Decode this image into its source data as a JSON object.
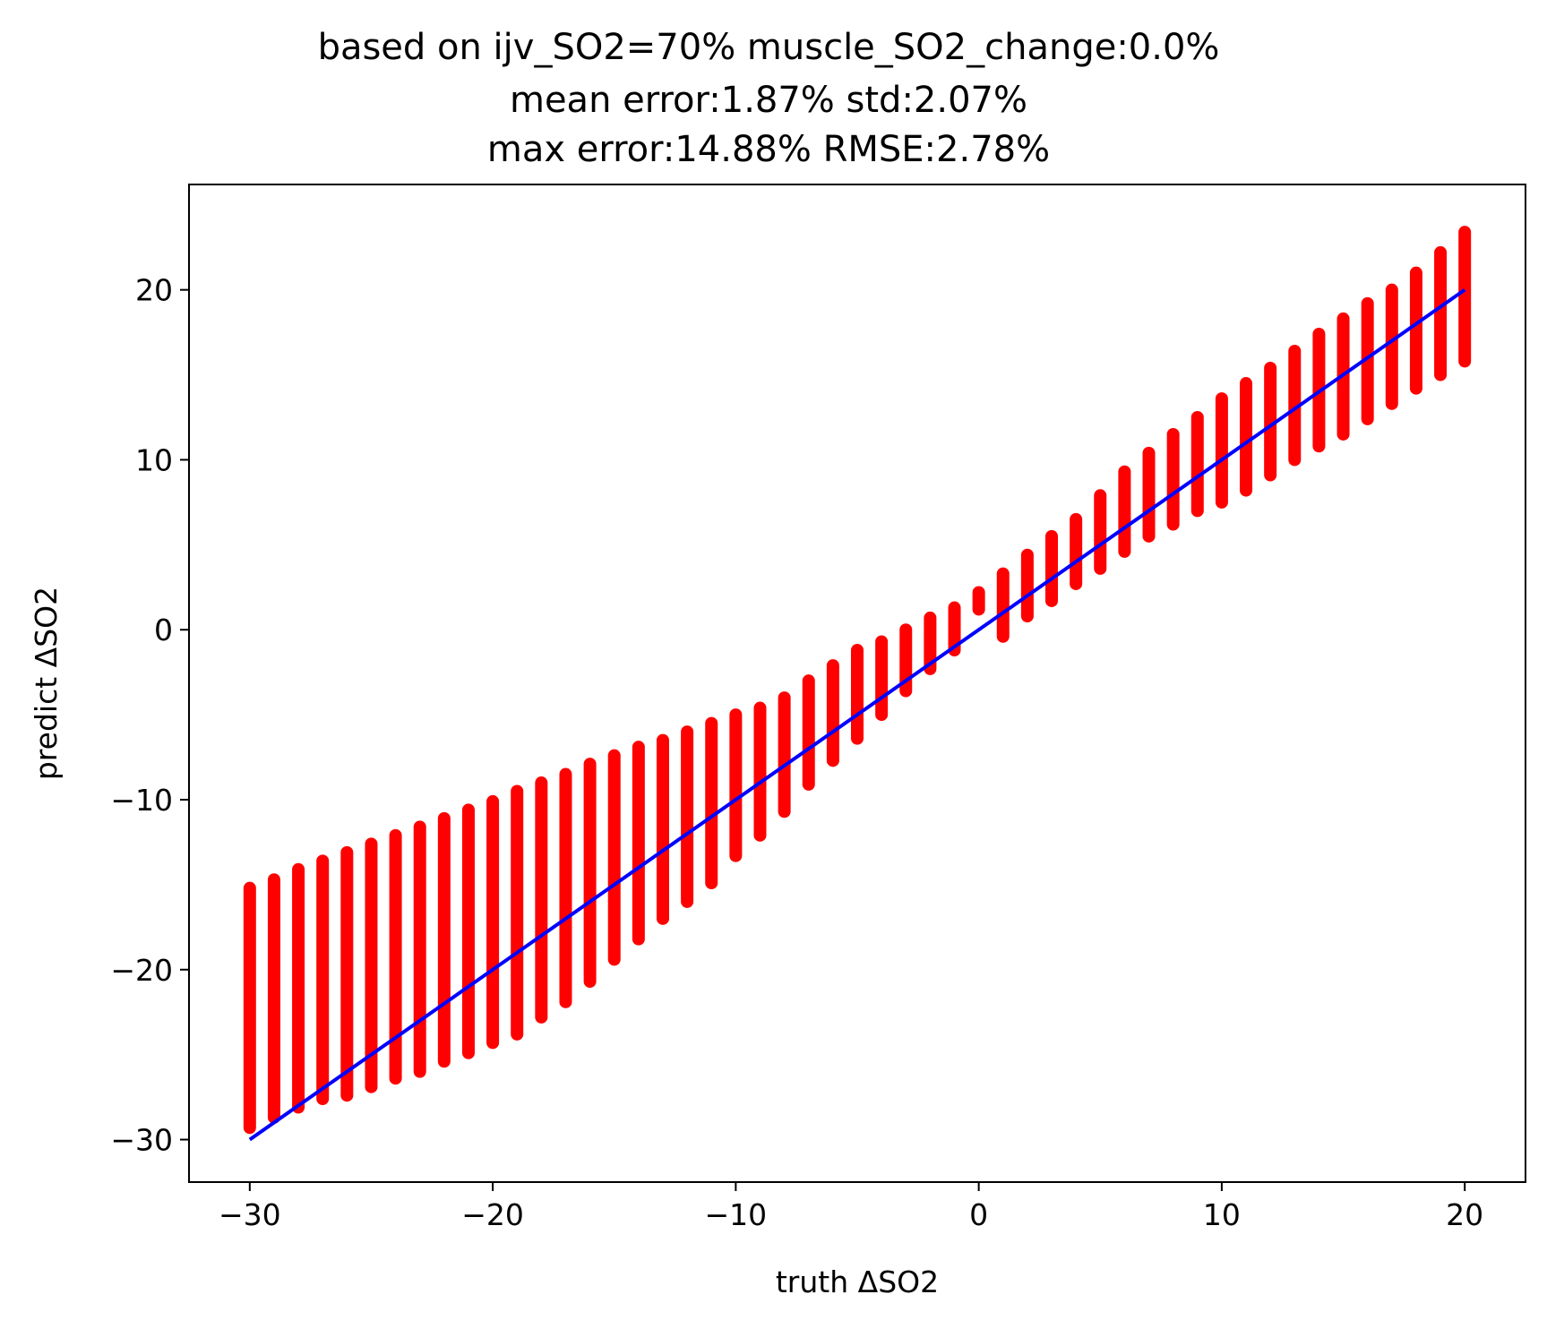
{
  "chart_data": {
    "type": "scatter",
    "title_lines": [
      "based on ijv_SO2=70% muscle_SO2_change:0.0%",
      "mean error:1.87% std:2.07%",
      "max error:14.88% RMSE:2.78%"
    ],
    "xlabel": "truth ΔSO2",
    "ylabel": "predict ΔSO2",
    "xlim": [
      -32.5,
      22.5
    ],
    "ylim": [
      -32.5,
      26.2
    ],
    "xticks": [
      -30,
      -20,
      -10,
      0,
      10,
      20
    ],
    "yticks": [
      -30,
      -20,
      -10,
      0,
      10,
      20
    ],
    "xtick_labels": [
      "−30",
      "−20",
      "−10",
      "0",
      "10",
      "20"
    ],
    "ytick_labels": [
      "−30",
      "−20",
      "−10",
      "0",
      "10",
      "20"
    ],
    "grid": false,
    "legend": "none",
    "series": [
      {
        "kind": "prediction-ranges",
        "color": "#ff0000",
        "x": [
          -30,
          -29,
          -28,
          -27,
          -26,
          -25,
          -24,
          -23,
          -22,
          -21,
          -20,
          -19,
          -18,
          -17,
          -16,
          -15,
          -14,
          -13,
          -12,
          -11,
          -10,
          -9,
          -8,
          -7,
          -6,
          -5,
          -4,
          -3,
          -2,
          -1,
          0,
          1,
          2,
          3,
          4,
          5,
          6,
          7,
          8,
          9,
          10,
          11,
          12,
          13,
          14,
          15,
          16,
          17,
          18,
          19,
          20
        ],
        "ymin": [
          -29.3,
          -28.7,
          -28.1,
          -27.6,
          -27.4,
          -26.9,
          -26.4,
          -26.0,
          -25.4,
          -24.9,
          -24.3,
          -23.8,
          -22.8,
          -21.9,
          -20.7,
          -19.4,
          -18.2,
          -17.0,
          -16.0,
          -14.9,
          -13.3,
          -12.1,
          -10.7,
          -9.1,
          -7.7,
          -6.4,
          -5.0,
          -3.6,
          -2.3,
          -1.2,
          1.2,
          -0.4,
          0.8,
          1.7,
          2.7,
          3.6,
          4.6,
          5.5,
          6.2,
          7.0,
          7.5,
          8.2,
          9.1,
          10.0,
          10.8,
          11.5,
          12.4,
          13.3,
          14.2,
          15.0,
          15.8
        ],
        "ymax": [
          -15.2,
          -14.7,
          -14.1,
          -13.6,
          -13.1,
          -12.6,
          -12.1,
          -11.6,
          -11.1,
          -10.6,
          -10.1,
          -9.5,
          -9.0,
          -8.5,
          -7.9,
          -7.4,
          -6.9,
          -6.5,
          -6.0,
          -5.5,
          -5.0,
          -4.6,
          -4.0,
          -3.0,
          -2.1,
          -1.2,
          -0.7,
          0.0,
          0.7,
          1.3,
          2.2,
          3.3,
          4.4,
          5.5,
          6.5,
          7.9,
          9.3,
          10.4,
          11.5,
          12.5,
          13.6,
          14.5,
          15.4,
          16.4,
          17.4,
          18.3,
          19.2,
          20.0,
          21.0,
          22.2,
          23.4
        ]
      },
      {
        "kind": "identity-line",
        "color": "#0000ff",
        "x": [
          -30,
          20
        ],
        "y": [
          -30,
          20
        ]
      }
    ]
  }
}
